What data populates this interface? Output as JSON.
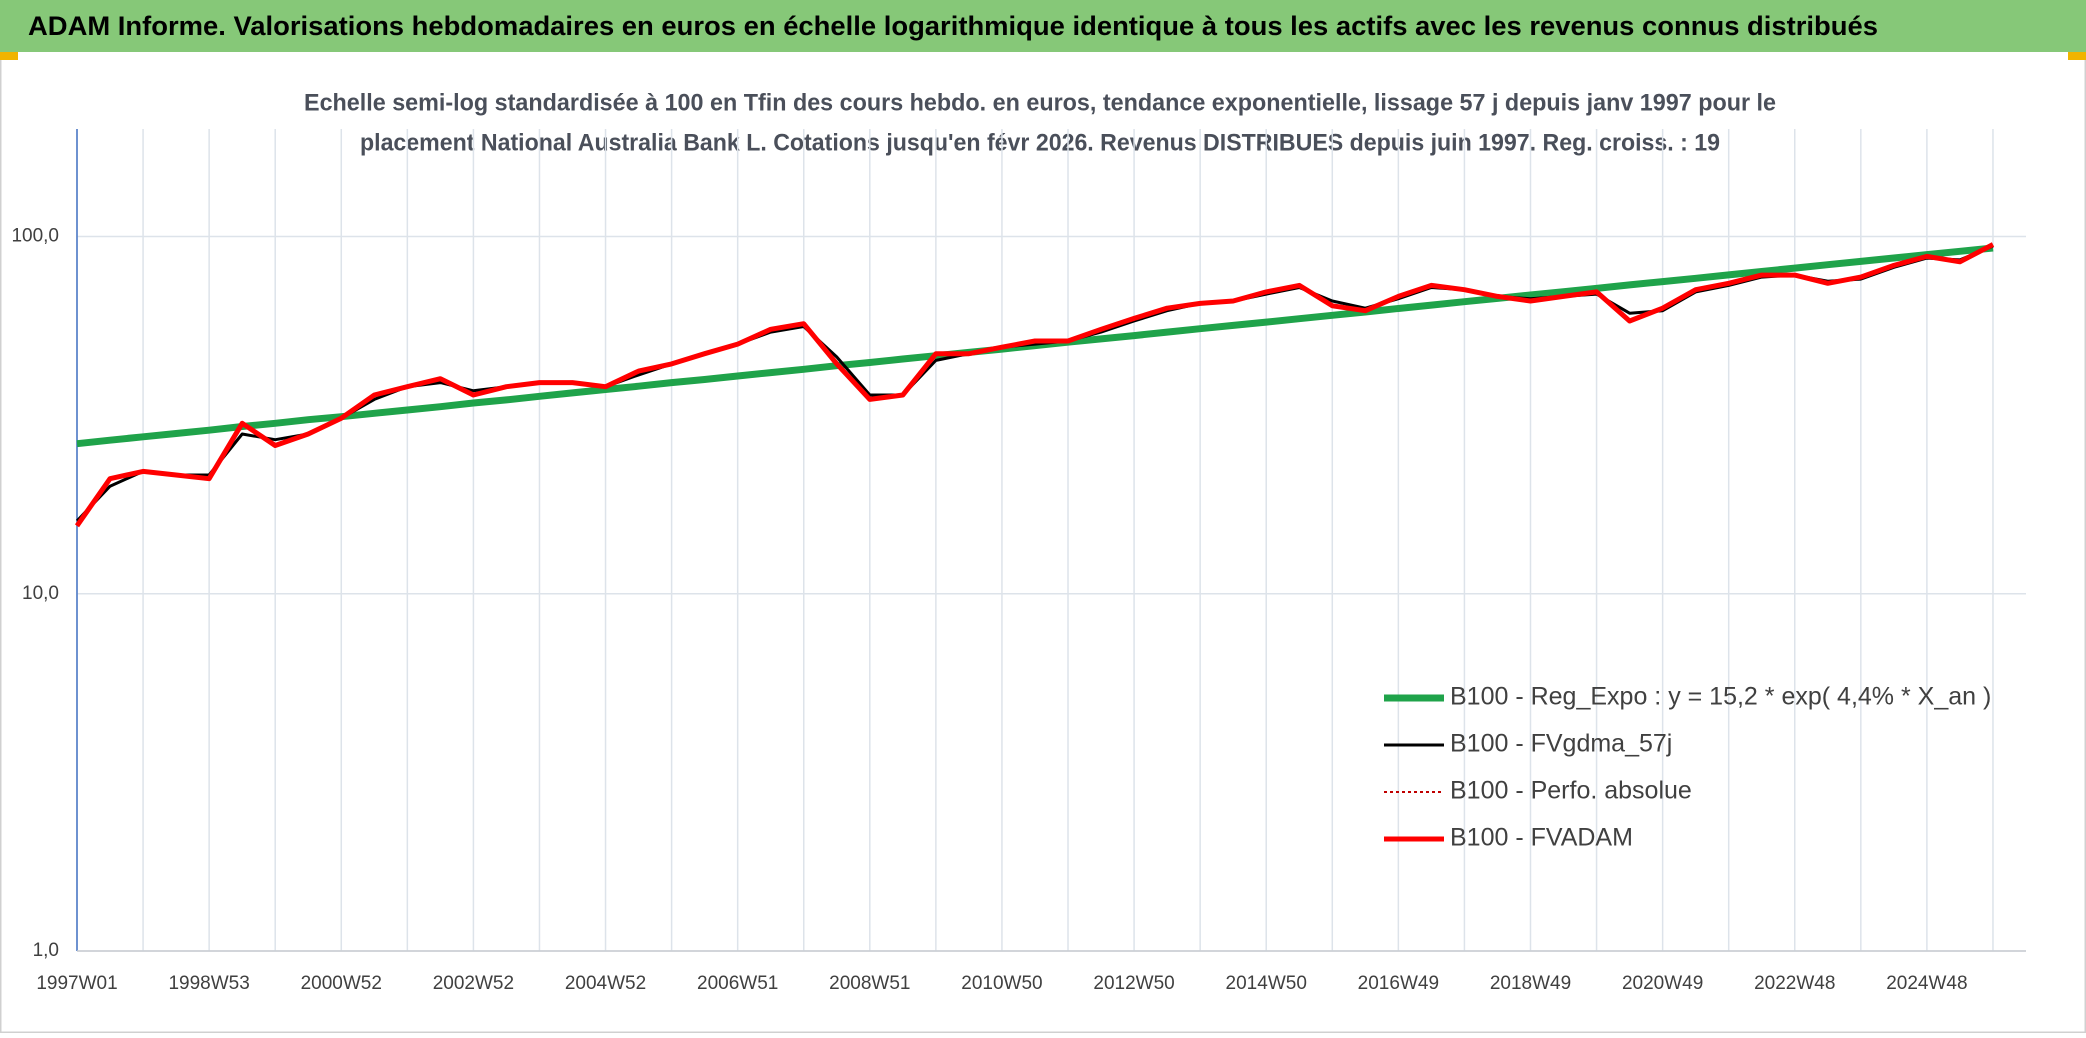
{
  "chart_data": {
    "type": "line",
    "title": "ADAM Informe. Valorisations hebdomadaires en euros en échelle logarithmique identique à tous les actifs avec les revenus connus distribués",
    "subtitle": [
      "Echelle semi-log standardisée à 100 en Tfin des cours hebdo. en euros, tendance exponentielle, lissage 57 j depuis janv 1997 pour le",
      "placement National Australia Bank L. Cotations jusqu'en févr 2026. Revenus DISTRIBUES depuis juin 1997. Reg. croiss. : 19"
    ],
    "categories": [
      "1997W01",
      null,
      null,
      null,
      "1998W53",
      null,
      null,
      null,
      "2000W52",
      null,
      null,
      null,
      "2002W52",
      null,
      null,
      null,
      "2004W52",
      null,
      null,
      null,
      "2006W51",
      null,
      null,
      null,
      "2008W51",
      null,
      null,
      null,
      "2010W50",
      null,
      null,
      null,
      "2012W50",
      null,
      null,
      null,
      "2014W50",
      null,
      null,
      null,
      "2016W49",
      null,
      null,
      null,
      "2018W49",
      null,
      null,
      null,
      "2020W49",
      null,
      null,
      null,
      "2022W48",
      null,
      null,
      null,
      "2024W48",
      null,
      null
    ],
    "log_scale": true,
    "ylim": [
      1,
      200
    ],
    "yticks": [
      {
        "value": 1,
        "label": "1,0"
      },
      {
        "value": 10,
        "label": "10,0"
      },
      {
        "value": 100,
        "label": "100,0"
      }
    ],
    "grid": true,
    "legend": "lower right",
    "series": [
      {
        "name": "B100 - Reg_Expo : y = 15,2 * exp( 4,4% *  X_an )",
        "color": "#1fa34a",
        "width": 7,
        "line_style": "solid",
        "values": [
          26.3,
          26.9,
          27.5,
          28.1,
          28.7,
          29.4,
          30.0,
          30.7,
          31.3,
          32.0,
          32.7,
          33.4,
          34.2,
          34.9,
          35.7,
          36.5,
          37.3,
          38.1,
          39.0,
          39.8,
          40.7,
          41.6,
          42.5,
          43.5,
          44.4,
          45.4,
          46.4,
          47.4,
          48.4,
          49.5,
          50.6,
          51.7,
          52.8,
          54.0,
          55.2,
          56.4,
          57.6,
          58.9,
          60.2,
          61.5,
          62.9,
          64.3,
          65.7,
          67.1,
          68.6,
          70.1,
          71.6,
          73.2,
          74.8,
          76.4,
          78.1,
          79.8,
          81.6,
          83.4,
          85.2,
          87.1,
          89.0,
          90.9,
          92.9
        ]
      },
      {
        "name": "B100 - FVgdma_57j",
        "color": "#000000",
        "width": 3,
        "line_style": "solid",
        "values": [
          16,
          20,
          22,
          21.5,
          21.5,
          28,
          27,
          28,
          31,
          35,
          38,
          39,
          37,
          38,
          39,
          39,
          38,
          41,
          44,
          47,
          50,
          54,
          56,
          46,
          36,
          36,
          45,
          47,
          49,
          50,
          51,
          54,
          58,
          62,
          65,
          66,
          69,
          72,
          66,
          63,
          67,
          72,
          71,
          68,
          67,
          68,
          69,
          61,
          62,
          70,
          73,
          77,
          78,
          75,
          76,
          82,
          87,
          86,
          94
        ]
      },
      {
        "name": "B100 - Perfo. absolue",
        "color": "#c00000",
        "width": 2,
        "line_style": "dotted",
        "values": [
          15.5,
          21,
          22,
          21.5,
          21,
          30,
          26,
          28,
          31,
          36,
          38,
          40,
          36,
          38,
          39,
          39,
          38,
          42,
          44,
          47,
          50,
          55,
          57,
          44,
          35,
          36,
          47,
          47,
          49,
          51,
          51,
          55,
          59,
          63,
          65,
          66,
          70,
          73,
          64,
          62,
          68,
          73,
          71,
          68,
          66,
          68,
          70,
          58,
          63,
          71,
          74,
          78,
          78,
          74,
          77,
          83,
          88,
          85,
          95
        ]
      },
      {
        "name": "B100 - FVADAM",
        "color": "#ff0000",
        "width": 5,
        "line_style": "solid",
        "values": [
          15.5,
          21,
          22,
          21.5,
          21,
          30,
          26,
          28,
          31,
          36,
          38,
          40,
          36,
          38,
          39,
          39,
          38,
          42,
          44,
          47,
          50,
          55,
          57,
          44,
          35,
          36,
          47,
          47,
          49,
          51,
          51,
          55,
          59,
          63,
          65,
          66,
          70,
          73,
          64,
          62,
          68,
          73,
          71,
          68,
          66,
          68,
          70,
          58,
          63,
          71,
          74,
          78,
          78,
          74,
          77,
          83,
          88,
          85,
          95
        ]
      }
    ]
  }
}
